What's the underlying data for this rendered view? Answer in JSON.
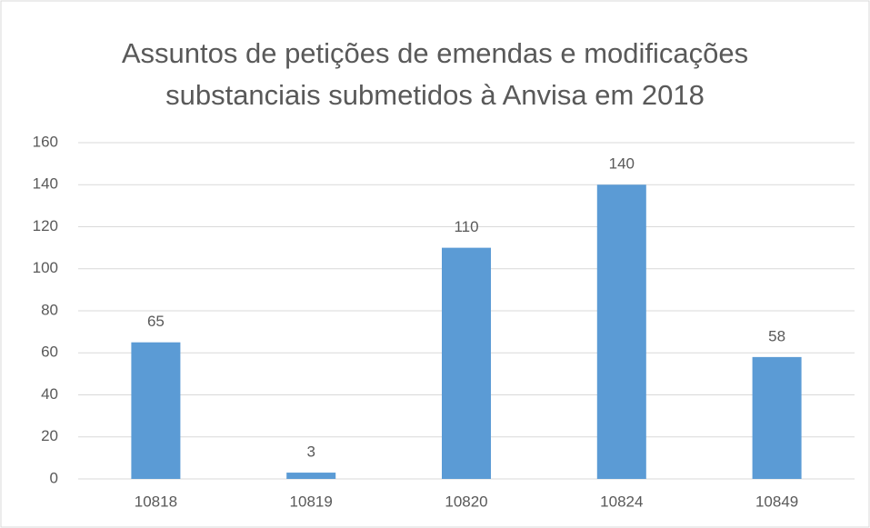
{
  "chart_data": {
    "type": "bar",
    "title": "Assuntos de petições de emendas e modificações substanciais submetidos à Anvisa em 2018",
    "categories": [
      "10818",
      "10819",
      "10820",
      "10824",
      "10849"
    ],
    "values": [
      65,
      3,
      110,
      140,
      58
    ],
    "color": "#5b9bd5",
    "ylim": [
      0,
      160
    ],
    "yticks": [
      0,
      20,
      40,
      60,
      80,
      100,
      120,
      140,
      160
    ],
    "grid": true,
    "data_labels": true
  }
}
